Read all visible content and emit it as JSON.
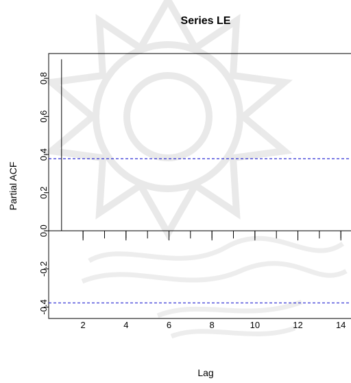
{
  "chart_data": {
    "type": "bar",
    "title": "Series LE",
    "xlabel": "Lag",
    "ylabel": "Partial ACF",
    "xlim": [
      0.4,
      14.6
    ],
    "ylim": [
      -0.46,
      0.93
    ],
    "x_ticks": [
      2,
      4,
      6,
      8,
      10,
      12,
      14
    ],
    "y_ticks": [
      -0.4,
      -0.2,
      0.0,
      0.2,
      0.4,
      0.6,
      0.8
    ],
    "x_ticks_labels": [
      "2",
      "4",
      "6",
      "8",
      "10",
      "12",
      "14"
    ],
    "y_ticks_labels": [
      "-0.4",
      "-0.2",
      "0.0",
      "0.2",
      "0.4",
      "0.6",
      "0.8"
    ],
    "series": [
      {
        "x": [
          1,
          2,
          3,
          4,
          5,
          6,
          7,
          8,
          9,
          10,
          11,
          12,
          13,
          14
        ],
        "values": [
          0.9,
          -0.04,
          -0.04,
          -0.04,
          -0.04,
          -0.04,
          -0.04,
          -0.04,
          -0.04,
          -0.04,
          -0.04,
          -0.04,
          -0.04,
          -0.04
        ]
      }
    ],
    "confidence_bounds": [
      0.378,
      -0.378
    ],
    "bound_color": "#0000cc",
    "grid": false,
    "legend": "none"
  }
}
